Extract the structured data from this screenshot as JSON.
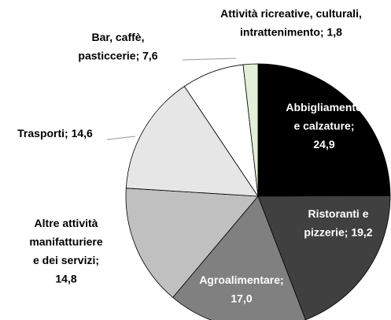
{
  "chart_data": {
    "type": "pie",
    "labels": [
      "Abbigliamento\ne calzature;\n24,9",
      "Ristoranti e\npizzerie; 19,2",
      "Agroalimentare;\n17,0",
      "Altre attività\nmanifatturiere\ne dei servizi;\n14,8",
      "Trasporti; 14,6",
      "Bar, caffè,\npasticcerie; 7,6",
      "Attività ricreative, culturali,\nintrattenimento; 1,8"
    ],
    "values": [
      24.9,
      19.2,
      17.0,
      14.8,
      14.6,
      7.6,
      1.8
    ],
    "colors": [
      "#000000",
      "#404040",
      "#808080",
      "#c0c0c0",
      "#e6e6e6",
      "#ffffff",
      "#e2f0d9"
    ]
  }
}
